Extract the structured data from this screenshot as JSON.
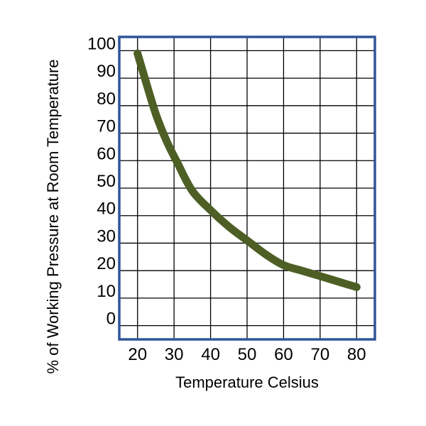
{
  "chart_data": {
    "type": "line",
    "title": "",
    "xlabel": "Temperature Celsius",
    "ylabel": "% of Working Pressure at Room Temperature",
    "xlim": [
      15,
      85
    ],
    "ylim": [
      -5,
      105
    ],
    "x_ticks": [
      20,
      30,
      40,
      50,
      60,
      70,
      80
    ],
    "x_tick_labels": [
      "20",
      "30",
      "40",
      "50",
      "60",
      "70",
      "80"
    ],
    "y_ticks": [
      0,
      10,
      20,
      30,
      40,
      50,
      60,
      70,
      80,
      90,
      100
    ],
    "y_tick_labels": [
      "0",
      "10",
      "20",
      "30",
      "40",
      "50",
      "60",
      "70",
      "80",
      "90",
      "100"
    ],
    "grid": true,
    "legend": "none",
    "series": [
      {
        "color": "#4e5f25",
        "x": [
          20,
          22,
          25,
          28,
          31,
          35,
          40,
          45,
          50,
          55,
          60,
          65,
          70,
          75,
          80
        ],
        "y": [
          99,
          90,
          77,
          67,
          59,
          49,
          42,
          36,
          31,
          26,
          22,
          20,
          18,
          16,
          14
        ]
      }
    ],
    "frame_color": "#2f5597",
    "grid_color": "#000000"
  }
}
